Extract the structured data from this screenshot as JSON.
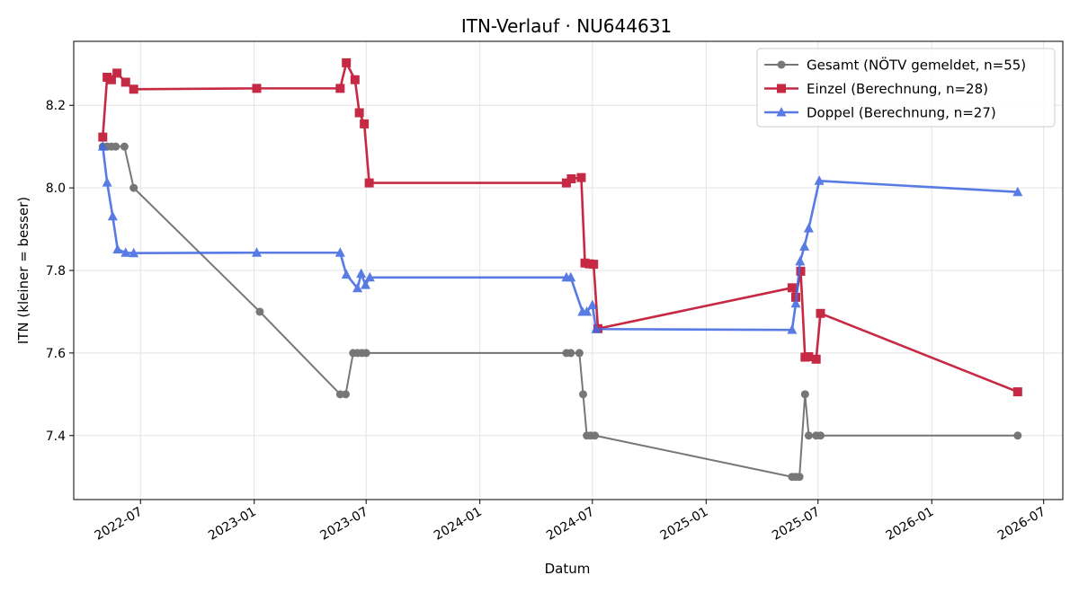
{
  "chart_data": {
    "type": "line",
    "title": "ITN-Verlauf · NU644631",
    "xlabel": "Datum",
    "ylabel": "ITN  (kleiner = besser)",
    "x_type": "date",
    "xlim": [
      "2022-03-15",
      "2026-08-01"
    ],
    "ylim": [
      7.245,
      8.355
    ],
    "x_ticks": [
      "2022-07-01",
      "2023-01-01",
      "2023-07-01",
      "2024-01-01",
      "2024-07-01",
      "2025-01-01",
      "2025-07-01",
      "2026-01-01",
      "2026-07-01"
    ],
    "x_tick_labels": [
      "2022-07",
      "2023-01",
      "2023-07",
      "2024-01",
      "2024-07",
      "2025-01",
      "2025-07",
      "2026-01",
      "2026-07"
    ],
    "y_ticks": [
      7.4,
      7.6,
      7.8,
      8.0,
      8.2
    ],
    "y_tick_labels": [
      "7.4",
      "7.6",
      "7.8",
      "8.0",
      "8.2"
    ],
    "grid": true,
    "legend_position": "top-right",
    "series": [
      {
        "name": "Gesamt (NÖTV gemeldet, n=55)",
        "color": "#444444",
        "marker": "circle",
        "points": [
          [
            "2022-05-01",
            8.1
          ],
          [
            "2022-05-08",
            8.1
          ],
          [
            "2022-05-15",
            8.1
          ],
          [
            "2022-05-22",
            8.1
          ],
          [
            "2022-06-05",
            8.1
          ],
          [
            "2022-06-20",
            8.0
          ],
          [
            "2023-01-10",
            7.7
          ],
          [
            "2023-05-20",
            7.5
          ],
          [
            "2023-05-29",
            7.5
          ],
          [
            "2023-06-10",
            7.6
          ],
          [
            "2023-06-17",
            7.6
          ],
          [
            "2023-06-24",
            7.6
          ],
          [
            "2023-07-01",
            7.6
          ],
          [
            "2024-05-20",
            7.6
          ],
          [
            "2024-05-27",
            7.6
          ],
          [
            "2024-06-10",
            7.6
          ],
          [
            "2024-06-16",
            7.5
          ],
          [
            "2024-06-22",
            7.4
          ],
          [
            "2024-06-28",
            7.4
          ],
          [
            "2024-07-05",
            7.4
          ],
          [
            "2025-05-20",
            7.3
          ],
          [
            "2025-05-26",
            7.3
          ],
          [
            "2025-06-01",
            7.3
          ],
          [
            "2025-06-10",
            7.5
          ],
          [
            "2025-06-16",
            7.4
          ],
          [
            "2025-06-28",
            7.4
          ],
          [
            "2025-07-05",
            7.4
          ],
          [
            "2026-05-20",
            7.4
          ]
        ]
      },
      {
        "name": "Einzel (Berechnung, n=28)",
        "color": "#c41e3a",
        "marker": "square",
        "points": [
          [
            "2022-05-01",
            8.123
          ],
          [
            "2022-05-08",
            8.268
          ],
          [
            "2022-05-15",
            8.262
          ],
          [
            "2022-05-24",
            8.278
          ],
          [
            "2022-06-07",
            8.256
          ],
          [
            "2022-06-20",
            8.239
          ],
          [
            "2023-01-05",
            8.241
          ],
          [
            "2023-05-20",
            8.241
          ],
          [
            "2023-05-30",
            8.303
          ],
          [
            "2023-06-13",
            8.262
          ],
          [
            "2023-06-20",
            8.182
          ],
          [
            "2023-06-28",
            8.155
          ],
          [
            "2023-07-06",
            8.012
          ],
          [
            "2024-05-20",
            8.012
          ],
          [
            "2024-05-28",
            8.022
          ],
          [
            "2024-06-13",
            8.025
          ],
          [
            "2024-06-19",
            7.818
          ],
          [
            "2024-06-26",
            7.816
          ],
          [
            "2024-07-03",
            7.815
          ],
          [
            "2024-07-10",
            7.659
          ],
          [
            "2025-05-20",
            7.758
          ],
          [
            "2025-05-26",
            7.735
          ],
          [
            "2025-06-03",
            7.798
          ],
          [
            "2025-06-10",
            7.59
          ],
          [
            "2025-06-16",
            7.591
          ],
          [
            "2025-06-28",
            7.585
          ],
          [
            "2025-07-05",
            7.696
          ],
          [
            "2026-05-20",
            7.506
          ]
        ]
      },
      {
        "name": "Doppel (Berechnung, n=27)",
        "color": "#4169e1",
        "marker": "triangle",
        "points": [
          [
            "2022-05-01",
            8.1
          ],
          [
            "2022-05-08",
            8.013
          ],
          [
            "2022-05-17",
            7.931
          ],
          [
            "2022-05-25",
            7.851
          ],
          [
            "2022-06-07",
            7.843
          ],
          [
            "2022-06-20",
            7.842
          ],
          [
            "2023-01-05",
            7.843
          ],
          [
            "2023-05-20",
            7.843
          ],
          [
            "2023-05-30",
            7.79
          ],
          [
            "2023-06-17",
            7.757
          ],
          [
            "2023-06-23",
            7.792
          ],
          [
            "2023-06-30",
            7.765
          ],
          [
            "2023-07-07",
            7.783
          ],
          [
            "2024-05-20",
            7.783
          ],
          [
            "2024-05-27",
            7.783
          ],
          [
            "2024-06-15",
            7.7
          ],
          [
            "2024-06-22",
            7.7
          ],
          [
            "2024-07-01",
            7.716
          ],
          [
            "2024-07-07",
            7.658
          ],
          [
            "2025-05-20",
            7.656
          ],
          [
            "2025-05-26",
            7.72
          ],
          [
            "2025-06-02",
            7.822
          ],
          [
            "2025-06-09",
            7.858
          ],
          [
            "2025-06-16",
            7.902
          ],
          [
            "2025-07-03",
            8.017
          ],
          [
            "2026-05-20",
            7.99
          ]
        ]
      }
    ]
  }
}
